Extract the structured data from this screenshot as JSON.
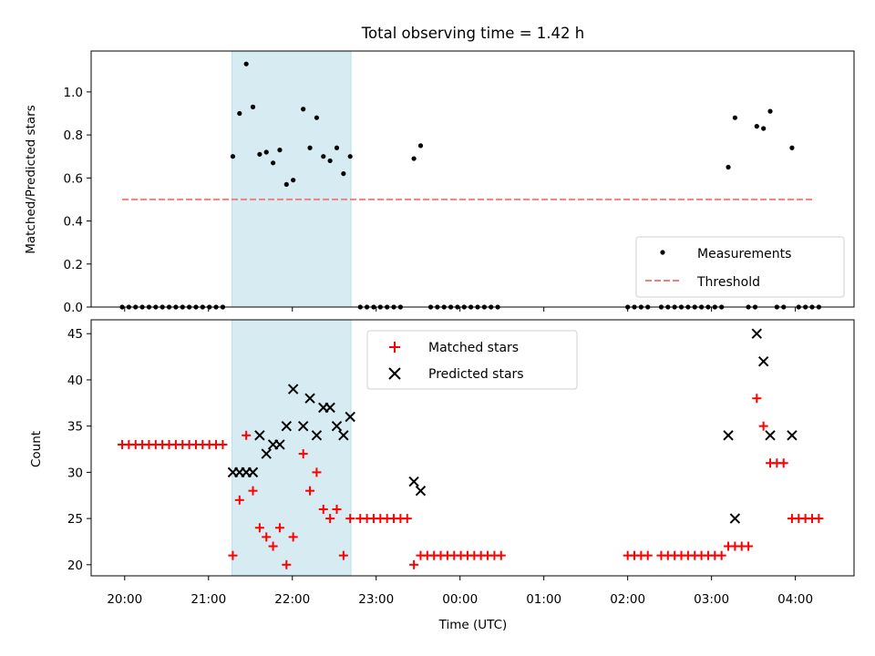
{
  "chart_data": {
    "title": "Total observing time = 1.42 h",
    "xlabel": "Time (UTC)",
    "x_tick_labels": [
      "20:00",
      "21:00",
      "22:00",
      "23:00",
      "00:00",
      "01:00",
      "02:00",
      "03:00",
      "04:00"
    ],
    "x_tick_hours": [
      20,
      21,
      22,
      23,
      24,
      25,
      26,
      27,
      28
    ],
    "x_unit_note": "hours (UTC), 24 = 00:00 next day",
    "xlim": [
      19.6,
      28.7
    ],
    "shaded_interval": [
      21.28,
      22.7
    ],
    "shade_color": "#add8e6",
    "panels": [
      {
        "type": "scatter",
        "ylabel": "Matched/Predicted stars",
        "ylim": [
          0,
          1.19
        ],
        "yticks": [
          "0.0",
          "0.2",
          "0.4",
          "0.6",
          "0.8",
          "1.0"
        ],
        "ytick_values": [
          0,
          0.2,
          0.4,
          0.6,
          0.8,
          1.0
        ],
        "legend_position": "lower-right",
        "series": [
          {
            "name": "Measurements",
            "marker": "dot",
            "color": "#000000",
            "x": [
              19.97,
              20.05,
              20.13,
              20.21,
              20.29,
              20.37,
              20.45,
              20.53,
              20.61,
              20.69,
              20.77,
              20.85,
              20.93,
              21.01,
              21.09,
              21.17,
              21.29,
              21.37,
              21.45,
              21.53,
              21.61,
              21.69,
              21.77,
              21.85,
              21.93,
              22.01,
              22.13,
              22.21,
              22.29,
              22.37,
              22.45,
              22.53,
              22.61,
              22.69,
              22.81,
              22.89,
              22.97,
              23.05,
              23.13,
              23.21,
              23.29,
              23.45,
              23.53,
              23.65,
              23.73,
              23.81,
              23.89,
              23.97,
              24.05,
              24.13,
              24.21,
              24.29,
              24.37,
              24.45,
              26.0,
              26.08,
              26.16,
              26.24,
              26.4,
              26.48,
              26.56,
              26.64,
              26.72,
              26.8,
              26.88,
              26.96,
              27.04,
              27.12,
              27.2,
              27.28,
              27.44,
              27.52,
              27.54,
              27.62,
              27.7,
              27.78,
              27.86,
              27.96,
              28.04,
              28.12,
              28.2,
              28.28
            ],
            "y": [
              0,
              0,
              0,
              0,
              0,
              0,
              0,
              0,
              0,
              0,
              0,
              0,
              0,
              0,
              0,
              0,
              0.7,
              0.9,
              1.13,
              0.93,
              0.71,
              0.72,
              0.67,
              0.73,
              0.57,
              0.59,
              0.92,
              0.74,
              0.88,
              0.7,
              0.68,
              0.74,
              0.62,
              0.7,
              0,
              0,
              0,
              0,
              0,
              0,
              0,
              0.69,
              0.75,
              0,
              0,
              0,
              0,
              0,
              0,
              0,
              0,
              0,
              0,
              0,
              0,
              0,
              0,
              0,
              0,
              0,
              0,
              0,
              0,
              0,
              0,
              0,
              0,
              0,
              0.65,
              0.88,
              0,
              0,
              0.84,
              0.83,
              0.91,
              0,
              0,
              0.74,
              0,
              0,
              0,
              0
            ]
          },
          {
            "name": "Threshold",
            "marker": "dashed-line",
            "color": "#f08080",
            "x": [
              19.97,
              28.2
            ],
            "y": [
              0.5,
              0.5
            ]
          }
        ]
      },
      {
        "type": "scatter",
        "ylabel": "Count",
        "ylim": [
          18.8,
          46.5
        ],
        "yticks": [
          "20",
          "25",
          "30",
          "35",
          "40",
          "45"
        ],
        "ytick_values": [
          20,
          25,
          30,
          35,
          40,
          45
        ],
        "legend_position": "top-center",
        "series": [
          {
            "name": "Matched stars",
            "marker": "plus",
            "color": "#ff0000",
            "x": [
              19.97,
              20.05,
              20.13,
              20.21,
              20.29,
              20.37,
              20.45,
              20.53,
              20.61,
              20.69,
              20.77,
              20.85,
              20.93,
              21.01,
              21.09,
              21.17,
              21.29,
              21.37,
              21.45,
              21.53,
              21.61,
              21.69,
              21.77,
              21.85,
              21.93,
              22.01,
              22.13,
              22.21,
              22.29,
              22.37,
              22.45,
              22.53,
              22.61,
              22.69,
              22.81,
              22.89,
              22.97,
              23.05,
              23.13,
              23.21,
              23.29,
              23.37,
              23.45,
              23.53,
              23.61,
              23.69,
              23.77,
              23.85,
              23.93,
              24.01,
              24.09,
              24.17,
              24.25,
              24.33,
              24.41,
              24.49,
              26.0,
              26.08,
              26.16,
              26.24,
              26.4,
              26.48,
              26.56,
              26.64,
              26.72,
              26.8,
              26.88,
              26.96,
              27.04,
              27.12,
              27.2,
              27.28,
              27.36,
              27.44,
              27.54,
              27.62,
              27.7,
              27.78,
              27.86,
              27.96,
              28.04,
              28.12,
              28.2,
              28.28
            ],
            "y": [
              33,
              33,
              33,
              33,
              33,
              33,
              33,
              33,
              33,
              33,
              33,
              33,
              33,
              33,
              33,
              33,
              21,
              27,
              34,
              28,
              24,
              23,
              22,
              24,
              20,
              23,
              32,
              28,
              30,
              26,
              25,
              26,
              21,
              25,
              25,
              25,
              25,
              25,
              25,
              25,
              25,
              25,
              20,
              21,
              21,
              21,
              21,
              21,
              21,
              21,
              21,
              21,
              21,
              21,
              21,
              21,
              21,
              21,
              21,
              21,
              21,
              21,
              21,
              21,
              21,
              21,
              21,
              21,
              21,
              21,
              22,
              22,
              22,
              22,
              38,
              35,
              31,
              31,
              31,
              25,
              25,
              25,
              25,
              25
            ]
          },
          {
            "name": "Predicted stars",
            "marker": "x",
            "color": "#000000",
            "x": [
              21.29,
              21.37,
              21.45,
              21.53,
              21.61,
              21.69,
              21.77,
              21.85,
              21.93,
              22.01,
              22.13,
              22.21,
              22.29,
              22.37,
              22.45,
              22.53,
              22.61,
              22.69,
              23.45,
              23.53,
              27.2,
              27.28,
              27.54,
              27.62,
              27.7,
              27.96
            ],
            "y": [
              30,
              30,
              30,
              30,
              34,
              32,
              33,
              33,
              35,
              39,
              35,
              38,
              34,
              37,
              37,
              35,
              34,
              36,
              29,
              28,
              34,
              25,
              45,
              42,
              34,
              34
            ]
          }
        ]
      }
    ]
  }
}
